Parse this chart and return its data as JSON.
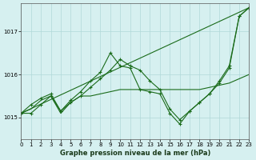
{
  "title": "",
  "xlabel": "Graphe pression niveau de la mer (hPa)",
  "background_color": "#d6f0f0",
  "grid_color": "#b0d8d8",
  "line_color": "#1a6b1a",
  "xlim": [
    0,
    23
  ],
  "ylim": [
    1014.5,
    1017.65
  ],
  "yticks": [
    1015,
    1016,
    1017
  ],
  "xticks": [
    0,
    1,
    2,
    3,
    4,
    5,
    6,
    7,
    8,
    9,
    10,
    11,
    12,
    13,
    14,
    15,
    16,
    17,
    18,
    19,
    20,
    21,
    22,
    23
  ],
  "series1": [
    1015.1,
    1015.1,
    1015.3,
    1015.5,
    1015.15,
    1015.35,
    1015.5,
    1015.7,
    1015.9,
    1016.1,
    1016.35,
    1016.2,
    1016.1,
    1015.85,
    1015.65,
    1015.2,
    1014.95,
    1015.15,
    1015.35,
    1015.55,
    1015.85,
    1016.2,
    1017.35,
    1017.55
  ],
  "series2": [
    1015.1,
    1015.2,
    1015.4,
    1015.5,
    1015.1,
    1015.35,
    1015.5,
    1015.5,
    1015.55,
    1015.6,
    1015.65,
    1015.65,
    1015.65,
    1015.65,
    1015.65,
    1015.65,
    1015.65,
    1015.65,
    1015.65,
    1015.7,
    1015.75,
    1015.8,
    1015.9,
    1016.0
  ],
  "series3_x": [
    0,
    23
  ],
  "series3_y": [
    1015.1,
    1017.55
  ],
  "series4": [
    1015.1,
    1015.3,
    1015.45,
    1015.55,
    1015.15,
    1015.4,
    1015.6,
    1015.85,
    1016.05,
    1016.5,
    1016.2,
    1016.15,
    1015.65,
    1015.6,
    1015.55,
    1015.1,
    1014.85,
    1015.15,
    1015.35,
    1015.55,
    1015.8,
    1016.15,
    1017.35,
    1017.55
  ]
}
